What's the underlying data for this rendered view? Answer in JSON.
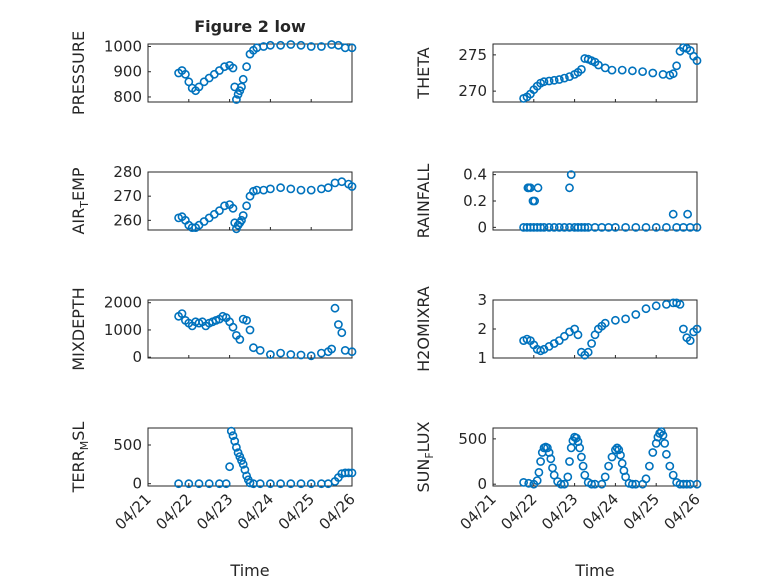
{
  "figure": {
    "marker_color": "#0072BD",
    "date_ticks": [
      "04/21",
      "04/22",
      "04/23",
      "04/24",
      "04/25",
      "04/26"
    ],
    "xlabel": "Time"
  },
  "chart_data": [
    {
      "type": "scatter",
      "title": "Figure 2 low",
      "ylabel": "PRESSURE",
      "ylim": [
        780,
        1010
      ],
      "yticks": [
        800,
        900,
        1000
      ],
      "xlim": [
        "04/21",
        "04/26"
      ],
      "grid": true,
      "x": [
        "04/21 18:00",
        "04/21 20:00",
        "04/21 22:00",
        "04/22 00:00",
        "04/22 02:00",
        "04/22 04:00",
        "04/22 06:00",
        "04/22 09:00",
        "04/22 12:00",
        "04/22 15:00",
        "04/22 18:00",
        "04/22 21:00",
        "04/23 00:00",
        "04/23 02:00",
        "04/23 03:00",
        "04/23 04:00",
        "04/23 05:00",
        "04/23 06:00",
        "04/23 07:00",
        "04/23 08:00",
        "04/23 10:00",
        "04/23 12:00",
        "04/23 14:00",
        "04/23 16:00",
        "04/23 20:00",
        "04/24 00:00",
        "04/24 06:00",
        "04/24 12:00",
        "04/24 18:00",
        "04/25 00:00",
        "04/25 06:00",
        "04/25 12:00",
        "04/25 16:00",
        "04/25 20:00",
        "04/26 00:00"
      ],
      "y": [
        895,
        905,
        890,
        860,
        835,
        825,
        840,
        860,
        875,
        890,
        905,
        920,
        925,
        915,
        840,
        790,
        810,
        825,
        840,
        870,
        920,
        970,
        985,
        995,
        1000,
        1005,
        1005,
        1008,
        1005,
        1000,
        1000,
        1008,
        1005,
        995,
        995
      ]
    },
    {
      "type": "scatter",
      "ylabel": "THETA",
      "ylim": [
        268.5,
        276.5
      ],
      "yticks": [
        270,
        275
      ],
      "xlim": [
        "04/21",
        "04/26"
      ],
      "grid": true,
      "x": [
        "04/21 18:00",
        "04/21 20:00",
        "04/21 22:00",
        "04/22 00:00",
        "04/22 02:00",
        "04/22 04:00",
        "04/22 06:00",
        "04/22 09:00",
        "04/22 12:00",
        "04/22 15:00",
        "04/22 18:00",
        "04/22 21:00",
        "04/23 00:00",
        "04/23 02:00",
        "04/23 04:00",
        "04/23 06:00",
        "04/23 08:00",
        "04/23 10:00",
        "04/23 12:00",
        "04/23 14:00",
        "04/23 18:00",
        "04/23 22:00",
        "04/24 04:00",
        "04/24 10:00",
        "04/24 16:00",
        "04/24 22:00",
        "04/25 04:00",
        "04/25 08:00",
        "04/25 10:00",
        "04/25 12:00",
        "04/25 14:00",
        "04/25 16:00",
        "04/25 18:00",
        "04/25 20:00",
        "04/25 22:00",
        "04/26 00:00"
      ],
      "y": [
        269,
        269.2,
        269.6,
        270.2,
        270.7,
        271.1,
        271.3,
        271.4,
        271.5,
        271.6,
        271.8,
        272,
        272.3,
        272.6,
        273,
        274.5,
        274.4,
        274.2,
        274,
        273.6,
        273.2,
        272.9,
        272.9,
        272.8,
        272.7,
        272.5,
        272.3,
        272.2,
        272.4,
        273.5,
        275.5,
        276,
        275.9,
        275.6,
        274.8,
        274.2
      ]
    },
    {
      "type": "scatter",
      "ylabel": "AIR_TEMP",
      "ylabel_main": "AIR",
      "ylabel_sub": "T",
      "ylabel_tail": "EMP",
      "ylim": [
        256,
        280
      ],
      "yticks": [
        260,
        270,
        280
      ],
      "xlim": [
        "04/21",
        "04/26"
      ],
      "grid": true,
      "x": [
        "04/21 18:00",
        "04/21 20:00",
        "04/21 22:00",
        "04/22 00:00",
        "04/22 02:00",
        "04/22 04:00",
        "04/22 06:00",
        "04/22 09:00",
        "04/22 12:00",
        "04/22 15:00",
        "04/22 18:00",
        "04/22 21:00",
        "04/23 00:00",
        "04/23 02:00",
        "04/23 03:00",
        "04/23 04:00",
        "04/23 05:00",
        "04/23 06:00",
        "04/23 07:00",
        "04/23 08:00",
        "04/23 10:00",
        "04/23 12:00",
        "04/23 14:00",
        "04/23 16:00",
        "04/23 20:00",
        "04/24 00:00",
        "04/24 06:00",
        "04/24 12:00",
        "04/24 18:00",
        "04/25 00:00",
        "04/25 06:00",
        "04/25 10:00",
        "04/25 14:00",
        "04/25 18:00",
        "04/25 22:00",
        "04/26 00:00"
      ],
      "y": [
        261,
        261.5,
        260,
        258,
        257,
        257,
        258,
        259.5,
        261,
        262.5,
        264,
        266,
        266.5,
        265,
        259,
        256.5,
        258,
        259,
        260,
        262,
        266,
        270,
        272,
        272.5,
        272.5,
        273,
        273.5,
        273,
        272.5,
        272.5,
        273,
        273.5,
        275.5,
        276,
        275,
        274
      ]
    },
    {
      "type": "scatter",
      "ylabel": "RAINFALL",
      "ylim": [
        -0.02,
        0.42
      ],
      "yticks": [
        0,
        0.2,
        0.4
      ],
      "ytick_labels": [
        "0",
        "0.2",
        "0.4"
      ],
      "xlim": [
        "04/21",
        "04/26"
      ],
      "grid": true,
      "x": [
        "04/21 18:00",
        "04/21 20:00",
        "04/21 22:00",
        "04/22 00:00",
        "04/22 02:00",
        "04/22 04:00",
        "04/22 06:00",
        "04/22 09:00",
        "04/22 12:00",
        "04/22 15:00",
        "04/22 18:00",
        "04/22 21:00",
        "04/23 00:00",
        "04/23 02:00",
        "04/23 04:00",
        "04/23 06:00",
        "04/23 08:00",
        "04/23 12:00",
        "04/23 16:00",
        "04/23 20:00",
        "04/24 00:00",
        "04/24 06:00",
        "04/24 12:00",
        "04/24 18:00",
        "04/25 00:00",
        "04/25 06:00",
        "04/25 12:00",
        "04/25 16:00",
        "04/25 20:00",
        "04/26 00:00",
        "04/21 20:30",
        "04/21 21:00",
        "04/21 22:00",
        "04/21 23:30",
        "04/22 00:30",
        "04/22 02:30",
        "04/22 21:00",
        "04/22 22:00",
        "04/25 10:00",
        "04/25 18:30"
      ],
      "y": [
        0,
        0,
        0,
        0,
        0,
        0,
        0,
        0,
        0,
        0,
        0,
        0,
        0,
        0,
        0,
        0,
        0,
        0,
        0,
        0,
        0,
        0,
        0,
        0,
        0,
        0,
        0,
        0,
        0,
        0,
        0.3,
        0.3,
        0.3,
        0.2,
        0.2,
        0.3,
        0.3,
        0.4,
        0.1,
        0.1
      ]
    },
    {
      "type": "scatter",
      "ylabel": "MIXDEPTH",
      "ylim": [
        -30,
        2100
      ],
      "yticks": [
        0,
        1000,
        2000
      ],
      "xlim": [
        "04/21",
        "04/26"
      ],
      "grid": true,
      "x": [
        "04/21 18:00",
        "04/21 20:00",
        "04/21 22:00",
        "04/22 00:00",
        "04/22 02:00",
        "04/22 04:00",
        "04/22 06:00",
        "04/22 08:00",
        "04/22 10:00",
        "04/22 12:00",
        "04/22 14:00",
        "04/22 16:00",
        "04/22 18:00",
        "04/22 20:00",
        "04/22 22:00",
        "04/23 00:00",
        "04/23 02:00",
        "04/23 04:00",
        "04/23 06:00",
        "04/23 08:00",
        "04/23 10:00",
        "04/23 12:00",
        "04/23 14:00",
        "04/23 18:00",
        "04/24 00:00",
        "04/24 06:00",
        "04/24 12:00",
        "04/24 18:00",
        "04/25 00:00",
        "04/25 06:00",
        "04/25 10:00",
        "04/25 12:00",
        "04/25 14:00",
        "04/25 16:00",
        "04/25 18:00",
        "04/25 20:00",
        "04/26 00:00"
      ],
      "y": [
        1500,
        1600,
        1350,
        1250,
        1150,
        1300,
        1250,
        1300,
        1150,
        1250,
        1300,
        1350,
        1400,
        1500,
        1450,
        1300,
        1100,
        800,
        650,
        1400,
        1350,
        1000,
        350,
        250,
        100,
        150,
        100,
        80,
        50,
        150,
        200,
        300,
        1800,
        1200,
        900,
        250,
        200
      ]
    },
    {
      "type": "scatter",
      "ylabel": "H2OMIXRA",
      "ylim": [
        1,
        3
      ],
      "yticks": [
        1,
        2,
        3
      ],
      "xlim": [
        "04/21",
        "04/26"
      ],
      "grid": true,
      "x": [
        "04/21 18:00",
        "04/21 20:00",
        "04/21 22:00",
        "04/22 00:00",
        "04/22 02:00",
        "04/22 04:00",
        "04/22 06:00",
        "04/22 09:00",
        "04/22 12:00",
        "04/22 15:00",
        "04/22 18:00",
        "04/22 21:00",
        "04/23 00:00",
        "04/23 02:00",
        "04/23 04:00",
        "04/23 06:00",
        "04/23 08:00",
        "04/23 10:00",
        "04/23 12:00",
        "04/23 14:00",
        "04/23 16:00",
        "04/23 18:00",
        "04/24 00:00",
        "04/24 06:00",
        "04/24 12:00",
        "04/24 18:00",
        "04/25 00:00",
        "04/25 06:00",
        "04/25 10:00",
        "04/25 12:00",
        "04/25 14:00",
        "04/25 16:00",
        "04/25 18:00",
        "04/25 20:00",
        "04/25 22:00",
        "04/26 00:00"
      ],
      "y": [
        1.6,
        1.65,
        1.6,
        1.45,
        1.3,
        1.25,
        1.3,
        1.4,
        1.5,
        1.6,
        1.75,
        1.9,
        2.0,
        1.8,
        1.2,
        1.1,
        1.2,
        1.5,
        1.8,
        2.0,
        2.1,
        2.2,
        2.3,
        2.35,
        2.5,
        2.7,
        2.8,
        2.85,
        2.9,
        2.9,
        2.85,
        2.0,
        1.7,
        1.6,
        1.9,
        2.0
      ]
    },
    {
      "type": "scatter",
      "ylabel": "TERR_MSL",
      "ylabel_main": "TERR",
      "ylabel_sub": "M",
      "ylabel_tail": "SL",
      "ylim": [
        -30,
        720
      ],
      "yticks": [
        0,
        500
      ],
      "xlim": [
        "04/21",
        "04/26"
      ],
      "grid": true,
      "x": [
        "04/21 18:00",
        "04/22 00:00",
        "04/22 06:00",
        "04/22 12:00",
        "04/22 18:00",
        "04/22 22:00",
        "04/23 00:00",
        "04/23 01:00",
        "04/23 02:00",
        "04/23 03:00",
        "04/23 04:00",
        "04/23 05:00",
        "04/23 06:00",
        "04/23 07:00",
        "04/23 08:00",
        "04/23 09:00",
        "04/23 10:00",
        "04/23 11:00",
        "04/23 12:00",
        "04/23 14:00",
        "04/23 18:00",
        "04/24 00:00",
        "04/24 06:00",
        "04/24 12:00",
        "04/24 18:00",
        "04/25 00:00",
        "04/25 06:00",
        "04/25 10:00",
        "04/25 14:00",
        "04/25 16:00",
        "04/25 18:00",
        "04/25 20:00",
        "04/25 22:00",
        "04/26 00:00"
      ],
      "y": [
        0,
        0,
        0,
        0,
        0,
        0,
        220,
        680,
        620,
        550,
        470,
        400,
        350,
        300,
        250,
        180,
        100,
        50,
        10,
        0,
        0,
        0,
        0,
        0,
        0,
        0,
        0,
        0,
        30,
        80,
        130,
        140,
        140,
        140
      ]
    },
    {
      "type": "scatter",
      "ylabel": "SUN_FLUX",
      "ylabel_main": "SUN",
      "ylabel_sub": "F",
      "ylabel_tail": "LUX",
      "ylim": [
        -20,
        620
      ],
      "yticks": [
        0,
        500
      ],
      "xlim": [
        "04/21",
        "04/26"
      ],
      "grid": true,
      "x": [
        "04/21 18:00",
        "04/21 21:00",
        "04/22 00:00",
        "04/22 02:00",
        "04/22 03:00",
        "04/22 04:00",
        "04/22 05:00",
        "04/22 06:00",
        "04/22 07:00",
        "04/22 08:00",
        "04/22 09:00",
        "04/22 10:00",
        "04/22 11:00",
        "04/22 12:00",
        "04/22 14:00",
        "04/22 16:00",
        "04/22 18:00",
        "04/22 20:00",
        "04/22 21:00",
        "04/22 22:00",
        "04/22 23:00",
        "04/23 00:00",
        "04/23 01:00",
        "04/23 02:00",
        "04/23 03:00",
        "04/23 04:00",
        "04/23 05:00",
        "04/23 06:00",
        "04/23 08:00",
        "04/23 10:00",
        "04/23 12:00",
        "04/23 16:00",
        "04/23 18:00",
        "04/23 20:00",
        "04/23 22:00",
        "04/24 00:00",
        "04/24 01:00",
        "04/24 02:00",
        "04/24 03:00",
        "04/24 04:00",
        "04/24 05:00",
        "04/24 06:00",
        "04/24 08:00",
        "04/24 10:00",
        "04/24 12:00",
        "04/24 16:00",
        "04/24 18:00",
        "04/24 20:00",
        "04/24 22:00",
        "04/25 00:00",
        "04/25 01:00",
        "04/25 02:00",
        "04/25 03:00",
        "04/25 04:00",
        "04/25 05:00",
        "04/25 06:00",
        "04/25 08:00",
        "04/25 10:00",
        "04/25 12:00",
        "04/25 14:00",
        "04/25 16:00",
        "04/25 18:00",
        "04/25 20:00",
        "04/26 00:00"
      ],
      "y": [
        20,
        10,
        0,
        40,
        130,
        250,
        350,
        400,
        410,
        400,
        350,
        280,
        180,
        100,
        30,
        0,
        0,
        80,
        250,
        400,
        480,
        520,
        510,
        470,
        400,
        300,
        200,
        100,
        20,
        0,
        0,
        0,
        80,
        200,
        300,
        380,
        400,
        380,
        320,
        230,
        150,
        80,
        10,
        0,
        0,
        0,
        60,
        200,
        350,
        450,
        520,
        560,
        580,
        540,
        450,
        330,
        200,
        100,
        20,
        0,
        0,
        0,
        0,
        0
      ]
    }
  ]
}
